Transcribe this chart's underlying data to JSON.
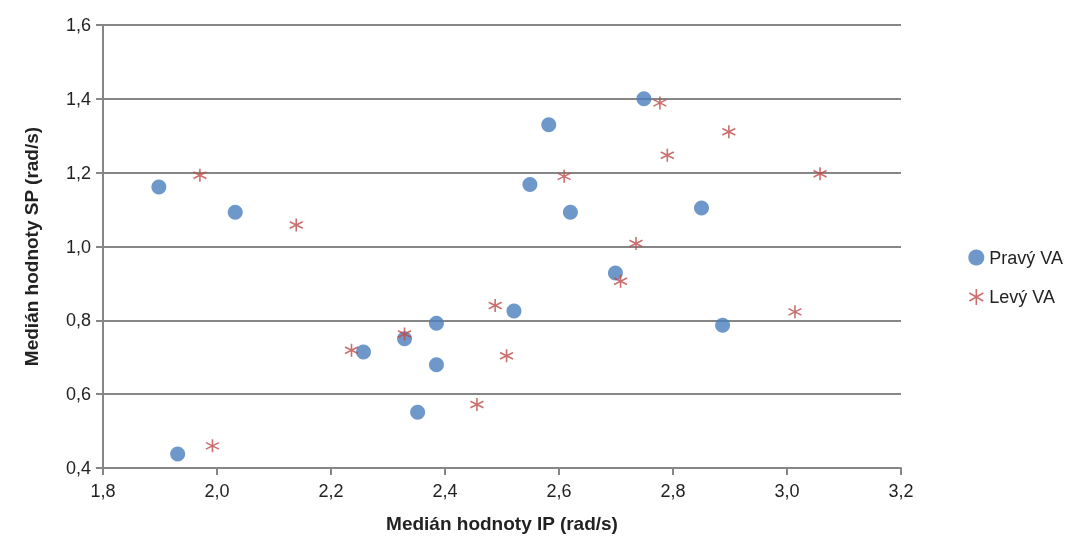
{
  "chart_data": {
    "type": "scatter",
    "xlabel": "Medián hodnoty IP (rad/s)",
    "ylabel": "Medián hodnoty SP (rad/s)",
    "xlim": [
      1.8,
      3.2
    ],
    "xticks": [
      {
        "value": 1.8,
        "label": "1,8"
      },
      {
        "value": 2.0,
        "label": "2,0"
      },
      {
        "value": 2.2,
        "label": "2,2"
      },
      {
        "value": 2.4,
        "label": "2,4"
      },
      {
        "value": 2.6,
        "label": "2,6"
      },
      {
        "value": 2.8,
        "label": "2,8"
      },
      {
        "value": 3.0,
        "label": "3,0"
      },
      {
        "value": 3.2,
        "label": "3,2"
      }
    ],
    "ylim": [
      0.4,
      1.6
    ],
    "yticks": [
      {
        "value": 0.4,
        "label": "0,4"
      },
      {
        "value": 0.6,
        "label": "0,6"
      },
      {
        "value": 0.8,
        "label": "0,8"
      },
      {
        "value": 1.0,
        "label": "1,0"
      },
      {
        "value": 1.2,
        "label": "1,2"
      },
      {
        "value": 1.4,
        "label": "1,4"
      },
      {
        "value": 1.6,
        "label": "1,6"
      }
    ],
    "grid": "y",
    "legend": "right",
    "series": [
      {
        "name": "Pravý VA",
        "color": "#4a7ebb",
        "marker": "circle",
        "x": [
          1.898,
          1.931,
          2.032,
          2.257,
          2.329,
          2.385,
          2.385,
          2.352,
          2.749,
          2.582,
          2.549,
          2.62,
          2.85,
          2.699,
          2.521,
          2.887
        ],
        "values": [
          1.161,
          0.438,
          1.093,
          0.714,
          0.75,
          0.792,
          0.68,
          0.551,
          1.4,
          1.33,
          1.168,
          1.093,
          1.104,
          0.928,
          0.825,
          0.787
        ]
      },
      {
        "name": "Levý VA",
        "color": "#be4b48",
        "marker": "cross",
        "x": [
          1.97,
          2.139,
          1.992,
          2.236,
          2.329,
          2.456,
          2.777,
          2.898,
          2.79,
          2.609,
          3.058,
          2.735,
          2.708,
          2.488,
          3.014,
          2.508
        ],
        "values": [
          1.193,
          1.058,
          0.46,
          0.719,
          0.763,
          0.572,
          1.389,
          1.311,
          1.247,
          1.19,
          1.197,
          1.008,
          0.906,
          0.84,
          0.823,
          0.704
        ]
      }
    ]
  }
}
